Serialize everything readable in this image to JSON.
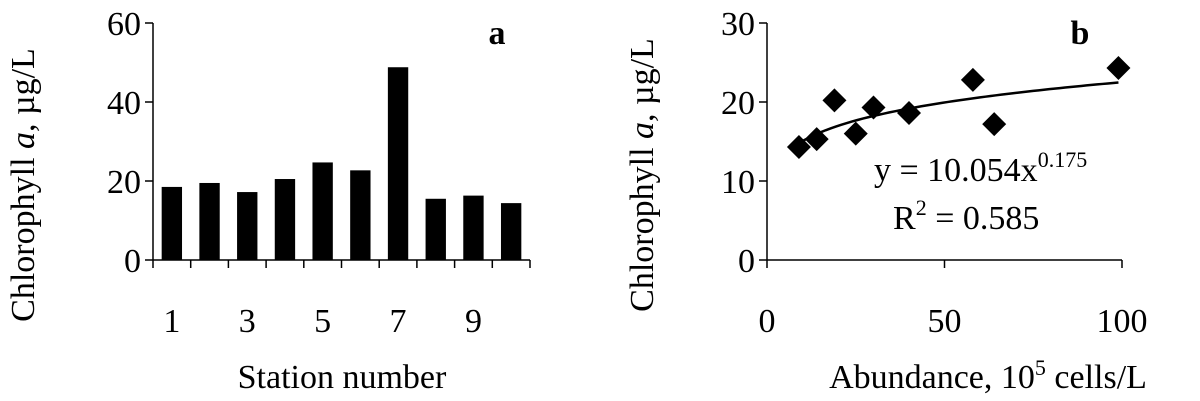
{
  "chart_data": [
    {
      "type": "bar",
      "panel_label": "a",
      "xlabel": "Station number",
      "ylabel_parts": [
        "Chlorophyll ",
        "a",
        ", µg/L"
      ],
      "categories": [
        "1",
        "2",
        "3",
        "4",
        "5",
        "6",
        "7",
        "8",
        "9",
        "10"
      ],
      "x_tick_labels": [
        "1",
        "3",
        "5",
        "7",
        "9"
      ],
      "values": [
        18.5,
        19.5,
        17.2,
        20.5,
        24.7,
        22.7,
        48.8,
        15.5,
        16.3,
        14.4
      ],
      "ylim": [
        0,
        60
      ],
      "y_ticks": [
        0,
        20,
        40,
        60
      ],
      "grid": false,
      "bar_color": "#000000"
    },
    {
      "type": "scatter",
      "panel_label": "b",
      "xlabel_parts": [
        "Abundance, 10",
        "5",
        " cells/L"
      ],
      "ylabel_parts": [
        "Chlorophyll ",
        "a",
        ", µg/L"
      ],
      "xlim": [
        0,
        100
      ],
      "ylim": [
        0,
        30
      ],
      "x_ticks": [
        0,
        50,
        100
      ],
      "y_ticks": [
        0,
        10,
        20,
        30
      ],
      "grid": false,
      "points": [
        {
          "x": 9,
          "y": 14.3
        },
        {
          "x": 14,
          "y": 15.3
        },
        {
          "x": 19,
          "y": 20.2
        },
        {
          "x": 25,
          "y": 16.0
        },
        {
          "x": 30,
          "y": 19.3
        },
        {
          "x": 40,
          "y": 18.6
        },
        {
          "x": 58,
          "y": 22.8
        },
        {
          "x": 64,
          "y": 17.2
        },
        {
          "x": 99,
          "y": 24.3
        }
      ],
      "trendline": {
        "type": "power",
        "a": 10.054,
        "b": 0.175,
        "x_range": [
          9,
          99
        ]
      },
      "equation_parts": [
        "y = 10.054x",
        "0.175"
      ],
      "r2_parts": [
        "R",
        "2",
        " = 0.585"
      ],
      "marker": "diamond"
    }
  ]
}
